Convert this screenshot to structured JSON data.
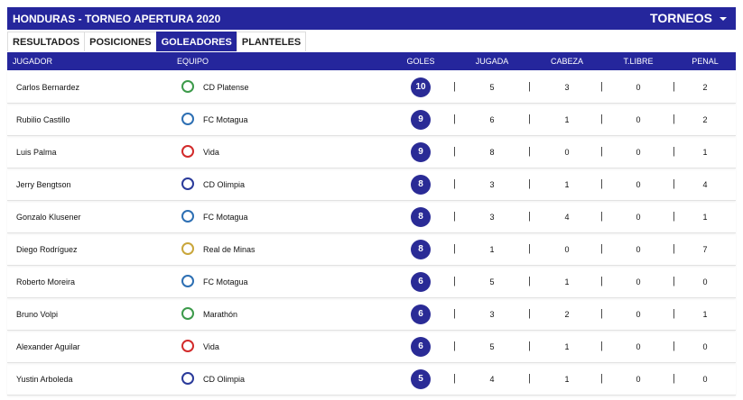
{
  "header": {
    "title": "HONDURAS - TORNEO APERTURA 2020",
    "menu": "TORNEOS"
  },
  "tabs": [
    "RESULTADOS",
    "POSICIONES",
    "GOLEADORES",
    "PLANTELES"
  ],
  "active_tab": 2,
  "table": {
    "columns": [
      "JUGADOR",
      "EQUIPO",
      "GOLES",
      "JUGADA",
      "CABEZA",
      "T.LIBRE",
      "PENAL"
    ],
    "rows": [
      [
        "Carlos Bernardez",
        "CD Platense",
        10,
        5,
        3,
        0,
        2
      ],
      [
        "Rubilio Castillo",
        "FC Motagua",
        9,
        6,
        1,
        0,
        2
      ],
      [
        "Luis Palma",
        "Vida",
        9,
        8,
        0,
        0,
        1
      ],
      [
        "Jerry Bengtson",
        "CD Olimpia",
        8,
        3,
        1,
        0,
        4
      ],
      [
        "Gonzalo Klusener",
        "FC Motagua",
        8,
        3,
        4,
        0,
        1
      ],
      [
        "Diego Rodríguez",
        "Real de Minas",
        8,
        1,
        0,
        0,
        7
      ],
      [
        "Roberto Moreira",
        "FC Motagua",
        6,
        5,
        1,
        0,
        0
      ],
      [
        "Bruno Volpi",
        "Marathón",
        6,
        3,
        2,
        0,
        1
      ],
      [
        "Alexander Aguilar",
        "Vida",
        6,
        5,
        1,
        0,
        0
      ],
      [
        "Yustin Arboleda",
        "CD Olimpia",
        5,
        4,
        1,
        0,
        0
      ]
    ]
  }
}
